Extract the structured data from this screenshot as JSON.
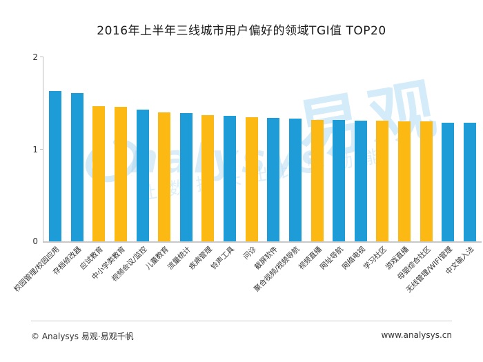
{
  "title": "2016年上半年三线城市用户偏好的领域TGI值 TOP20",
  "chart_data": {
    "type": "bar",
    "title": "2016年上半年三线城市用户偏好的领域TGI值 TOP20",
    "categories": [
      "校园管理/校园应用",
      "存档修改器",
      "应试教育",
      "中小学类教育",
      "视频会议/监控",
      "儿童教育",
      "流量统计",
      "疾病管理",
      "铃声工具",
      "问诊",
      "截屏软件",
      "聚合视频/视频导航",
      "视频直播",
      "网址导航",
      "网络电视",
      "学习社区",
      "游戏直播",
      "母婴综合社区",
      "无线管理/WIFI管理",
      "中文输入法"
    ],
    "values": [
      1.63,
      1.61,
      1.47,
      1.46,
      1.43,
      1.4,
      1.39,
      1.37,
      1.36,
      1.35,
      1.34,
      1.33,
      1.32,
      1.32,
      1.31,
      1.31,
      1.3,
      1.3,
      1.29,
      1.29
    ],
    "bar_colors": [
      "blue",
      "blue",
      "yellow",
      "yellow",
      "blue",
      "yellow",
      "blue",
      "yellow",
      "blue",
      "yellow",
      "blue",
      "blue",
      "yellow",
      "blue",
      "blue",
      "yellow",
      "yellow",
      "yellow",
      "blue",
      "blue"
    ],
    "xlabel": "",
    "ylabel": "",
    "ylim": [
      0,
      2
    ],
    "yticks": [
      0,
      1,
      2
    ],
    "grid": false,
    "legend": "none",
    "colors": {
      "blue": "#1E9CD7",
      "yellow": "#FDB913"
    }
  },
  "watermark": {
    "brand_text": "nalysys",
    "brand_cjk": "易观",
    "slogan": "让数据长出比特动能"
  },
  "footer": {
    "left": "© Analysys 易观·易观千帆",
    "right": "www.analysys.cn"
  }
}
